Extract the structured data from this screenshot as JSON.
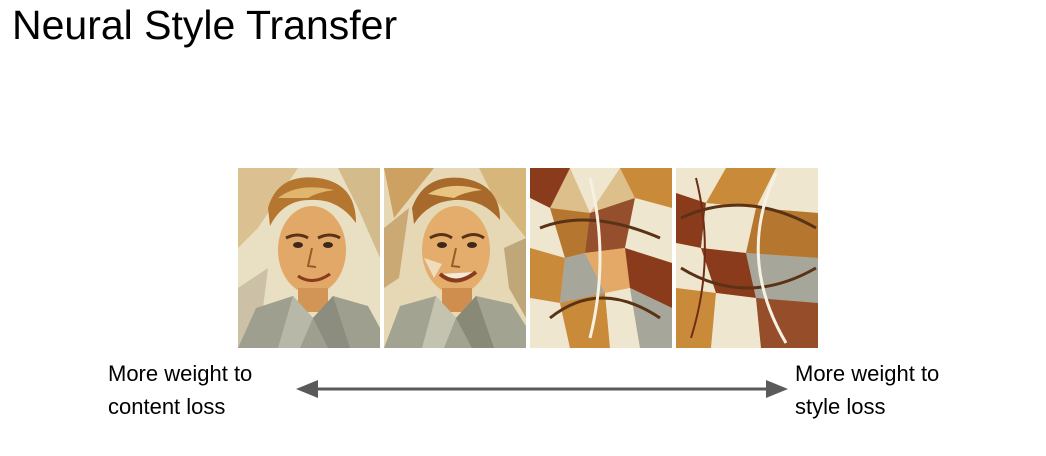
{
  "slide": {
    "title": "Neural Style Transfer",
    "left_label": {
      "line1": "More weight to",
      "line2": "content loss"
    },
    "right_label": {
      "line1": "More weight to",
      "line2": "style loss"
    },
    "arrow_color": "#5a5a5a"
  },
  "panels": [
    {
      "name": "stylized-portrait-1"
    },
    {
      "name": "stylized-portrait-2"
    },
    {
      "name": "stylized-portrait-3"
    },
    {
      "name": "stylized-portrait-4"
    }
  ],
  "colors": {
    "ochre": "#c98b3a",
    "cream": "#efe6cf",
    "sienna": "#8a3b1c",
    "grey": "#a6a79a",
    "skin": "#e4a867"
  }
}
